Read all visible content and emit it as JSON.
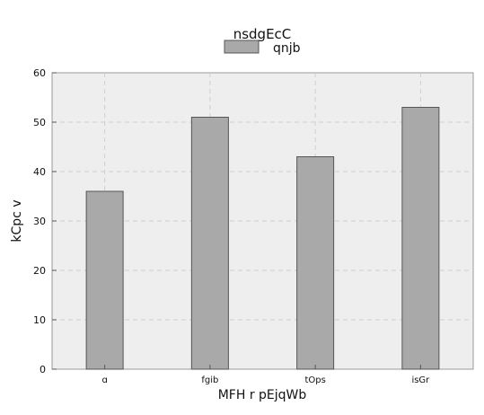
{
  "chart_data": {
    "type": "bar",
    "title": "nsdgEcC",
    "xlabel": "MFH r pEjqWb",
    "ylabel": "kCpc v",
    "categories": [
      "ɑ",
      "fgib",
      "tOps",
      "isGr"
    ],
    "series": [
      {
        "name": "qnjb",
        "values": [
          36,
          51,
          43,
          53
        ],
        "color": "#a9a9a9"
      }
    ],
    "ylim": [
      0,
      60
    ],
    "yticks": [
      0,
      10,
      20,
      30,
      40,
      50,
      60
    ],
    "grid": true,
    "legend_position": "top-center",
    "colors": {
      "plot_background": "#eeeeee",
      "grid": "#cfcfcf",
      "bar_edge": "#555555"
    }
  }
}
